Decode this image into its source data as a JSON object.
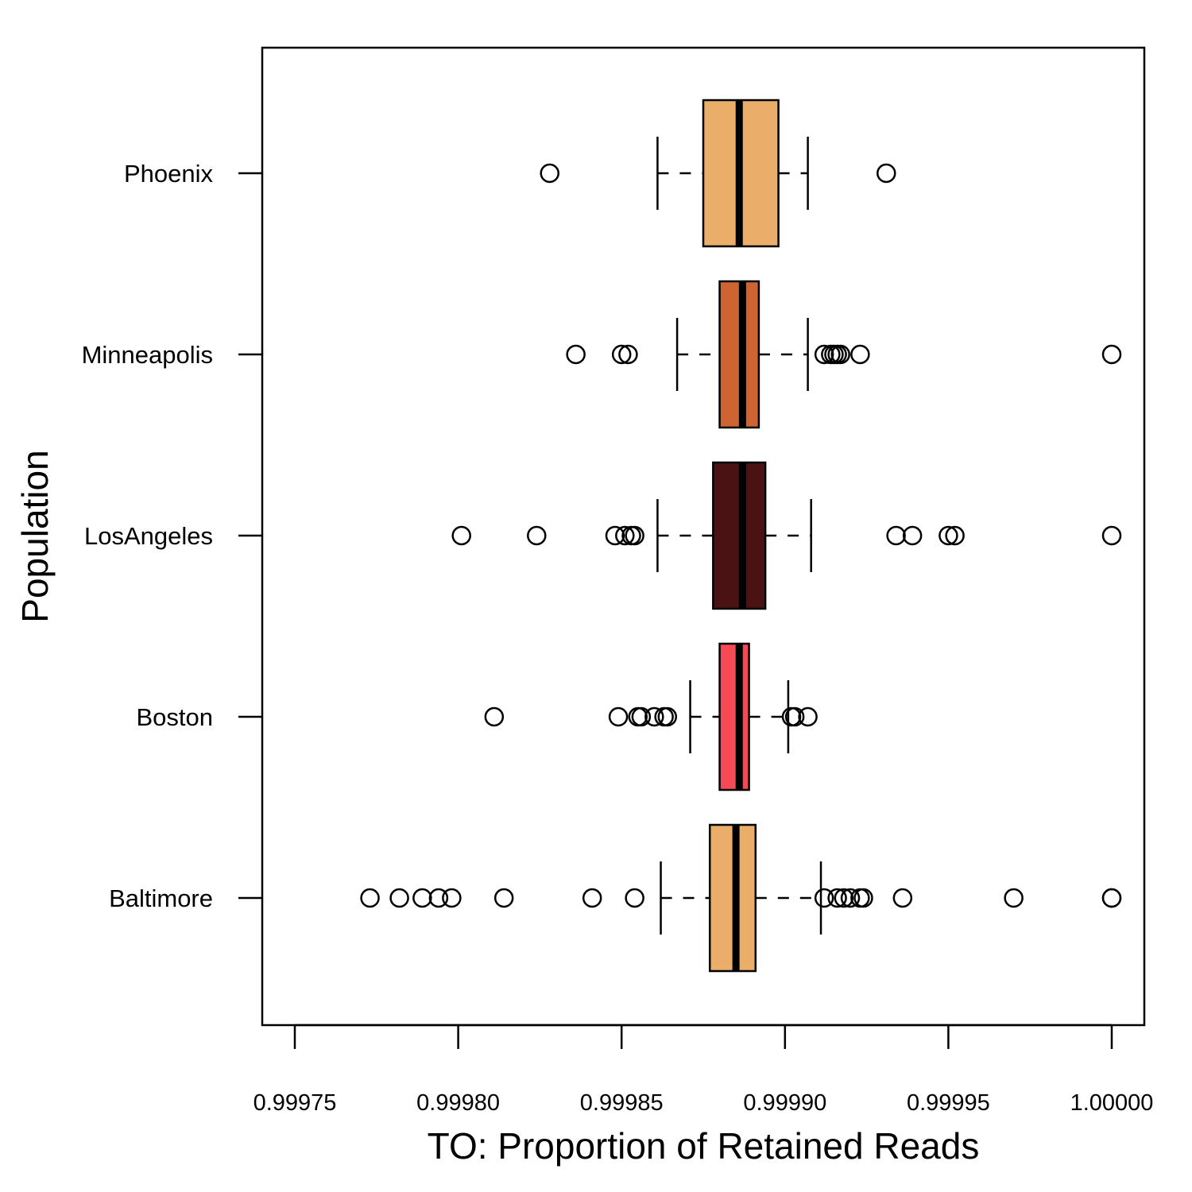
{
  "chart_data": {
    "type": "boxplot",
    "orientation": "horizontal",
    "xlabel": "TO: Proportion of Retained Reads",
    "ylabel": "Population",
    "xlim": [
      0.99974,
      1.00001
    ],
    "x_ticks": [
      0.99975,
      0.9998,
      0.99985,
      0.9999,
      0.99995,
      1.0
    ],
    "x_tick_labels": [
      "0.99975",
      "0.99980",
      "0.99985",
      "0.99990",
      "0.99995",
      "1.00000"
    ],
    "grid": false,
    "categories": [
      "Baltimore",
      "Boston",
      "LosAngeles",
      "Minneapolis",
      "Phoenix"
    ],
    "series": [
      {
        "category": "Baltimore",
        "color": "#EBAE6A",
        "whisker_low": 0.999862,
        "q1": 0.999877,
        "median": 0.999885,
        "q3": 0.999891,
        "whisker_high": 0.999911,
        "outliers": [
          0.999773,
          0.999782,
          0.999789,
          0.999794,
          0.999798,
          0.999814,
          0.999841,
          0.999854,
          0.999912,
          0.999916,
          0.999918,
          0.99992,
          0.999923,
          0.999924,
          0.999936,
          0.99997,
          1.0,
          1.0
        ]
      },
      {
        "category": "Boston",
        "color": "#F44A55",
        "whisker_low": 0.999871,
        "q1": 0.99988,
        "median": 0.999886,
        "q3": 0.999889,
        "whisker_high": 0.999901,
        "outliers": [
          0.999811,
          0.999849,
          0.999855,
          0.999856,
          0.99986,
          0.999863,
          0.999864,
          0.999902,
          0.999903,
          0.999907
        ]
      },
      {
        "category": "LosAngeles",
        "color": "#4A1213",
        "whisker_low": 0.999861,
        "q1": 0.999878,
        "median": 0.999887,
        "q3": 0.999894,
        "whisker_high": 0.999908,
        "outliers": [
          0.999801,
          0.999824,
          0.999848,
          0.999851,
          0.999853,
          0.999854,
          0.999934,
          0.999939,
          0.99995,
          0.999952,
          1.0
        ]
      },
      {
        "category": "Minneapolis",
        "color": "#CE6432",
        "whisker_low": 0.999867,
        "q1": 0.99988,
        "median": 0.999887,
        "q3": 0.999892,
        "whisker_high": 0.999907,
        "outliers": [
          0.999836,
          0.99985,
          0.999852,
          0.999912,
          0.999914,
          0.999915,
          0.999916,
          0.999917,
          0.999923,
          1.0
        ]
      },
      {
        "category": "Phoenix",
        "color": "#EBAE6A",
        "whisker_low": 0.999861,
        "q1": 0.999875,
        "median": 0.999886,
        "q3": 0.999898,
        "whisker_high": 0.999907,
        "outliers": [
          0.999828,
          0.999931
        ]
      }
    ]
  }
}
